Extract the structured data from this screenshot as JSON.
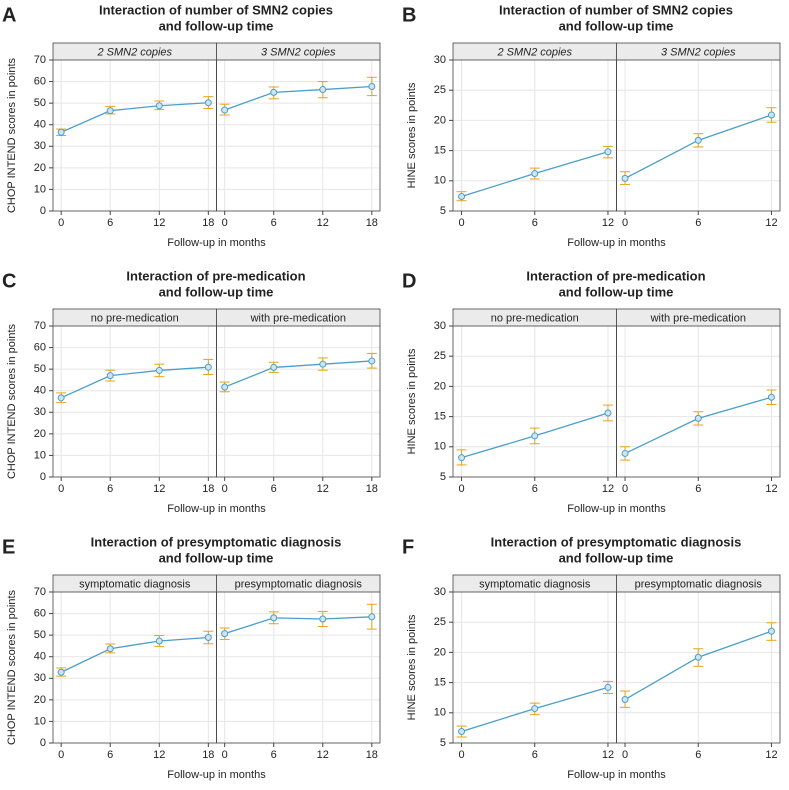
{
  "chart_data": [
    {
      "type": "line",
      "label": "A",
      "title": [
        "Interaction of number of SMN2 copies",
        "and follow-up time"
      ],
      "xlabel": "Follow-up in months",
      "ylabel": "CHOP INTEND scores in points",
      "ylim": [
        0,
        70
      ],
      "yticks": [
        0,
        10,
        20,
        30,
        40,
        50,
        60,
        70
      ],
      "xlim": [
        -1,
        19
      ],
      "xticks": [
        0,
        6,
        12,
        18
      ],
      "facet_italic": true,
      "color": "#4a9fc8",
      "error_color": "#e8a317",
      "grid": true,
      "facets": [
        {
          "name": "2 SMN2 copies",
          "x": [
            0,
            6,
            12,
            18
          ],
          "values": [
            36.5,
            46.5,
            48.8,
            50.2
          ],
          "lower": [
            35,
            45,
            47,
            47.5
          ],
          "upper": [
            38,
            48.5,
            51,
            53
          ]
        },
        {
          "name": "3 SMN2 copies",
          "x": [
            0,
            6,
            12,
            18
          ],
          "values": [
            46.8,
            55,
            56.3,
            57.7
          ],
          "lower": [
            44.5,
            52,
            52.5,
            53.5
          ],
          "upper": [
            49.5,
            57.5,
            60,
            62
          ]
        }
      ]
    },
    {
      "type": "line",
      "label": "B",
      "title": [
        "Interaction of number of SMN2 copies",
        "and follow-up time"
      ],
      "xlabel": "Follow-up in months",
      "ylabel": "HINE scores in points",
      "ylim": [
        5,
        30
      ],
      "yticks": [
        5,
        10,
        15,
        20,
        25,
        30
      ],
      "xlim": [
        -0.7,
        12.7
      ],
      "xticks": [
        0,
        6,
        12
      ],
      "facet_italic": true,
      "color": "#4a9fc8",
      "error_color": "#e8a317",
      "grid": true,
      "facets": [
        {
          "name": "2 SMN2 copies",
          "x": [
            0,
            6,
            12
          ],
          "values": [
            7.4,
            11.2,
            14.8
          ],
          "lower": [
            6.7,
            10.3,
            13.8
          ],
          "upper": [
            8.2,
            12.1,
            15.7
          ]
        },
        {
          "name": "3 SMN2 copies",
          "x": [
            0,
            6,
            12
          ],
          "values": [
            10.4,
            16.7,
            20.9
          ],
          "lower": [
            9.4,
            15.6,
            19.7
          ],
          "upper": [
            11.5,
            17.8,
            22.1
          ]
        }
      ]
    },
    {
      "type": "line",
      "label": "C",
      "title": [
        "Interaction of pre-medication",
        "and follow-up time"
      ],
      "xlabel": "Follow-up in months",
      "ylabel": "CHOP INTEND scores in points",
      "ylim": [
        0,
        70
      ],
      "yticks": [
        0,
        10,
        20,
        30,
        40,
        50,
        60,
        70
      ],
      "xlim": [
        -1,
        19
      ],
      "xticks": [
        0,
        6,
        12,
        18
      ],
      "facet_italic": false,
      "color": "#4a9fc8",
      "error_color": "#e8a317",
      "grid": true,
      "facets": [
        {
          "name": "no pre-medication",
          "x": [
            0,
            6,
            12,
            18
          ],
          "values": [
            36.7,
            47,
            49.4,
            50.9
          ],
          "lower": [
            34.5,
            44.5,
            46.5,
            47.5
          ],
          "upper": [
            39,
            49.5,
            52.3,
            54.5
          ]
        },
        {
          "name": "with pre-medication",
          "x": [
            0,
            6,
            12,
            18
          ],
          "values": [
            41.7,
            50.8,
            52.3,
            53.8
          ],
          "lower": [
            39.5,
            48.5,
            49.5,
            50.5
          ],
          "upper": [
            44,
            53.2,
            55.2,
            57.3
          ]
        }
      ]
    },
    {
      "type": "line",
      "label": "D",
      "title": [
        "Interaction of pre-medication",
        "and follow-up time"
      ],
      "xlabel": "Follow-up in months",
      "ylabel": "HINE scores in points",
      "ylim": [
        5,
        30
      ],
      "yticks": [
        5,
        10,
        15,
        20,
        25,
        30
      ],
      "xlim": [
        -0.7,
        12.7
      ],
      "xticks": [
        0,
        6,
        12
      ],
      "facet_italic": false,
      "color": "#4a9fc8",
      "error_color": "#e8a317",
      "grid": true,
      "facets": [
        {
          "name": "no pre-medication",
          "x": [
            0,
            6,
            12
          ],
          "values": [
            8.2,
            11.8,
            15.6
          ],
          "lower": [
            7,
            10.5,
            14.3
          ],
          "upper": [
            9.5,
            13.1,
            16.9
          ]
        },
        {
          "name": "with pre-medication",
          "x": [
            0,
            6,
            12
          ],
          "values": [
            8.9,
            14.7,
            18.2
          ],
          "lower": [
            7.8,
            13.6,
            17
          ],
          "upper": [
            10,
            15.8,
            19.4
          ]
        }
      ]
    },
    {
      "type": "line",
      "label": "E",
      "title": [
        "Interaction of presymptomatic diagnosis",
        "and follow-up time"
      ],
      "xlabel": "Follow-up in months",
      "ylabel": "CHOP INTEND scores in points",
      "ylim": [
        0,
        70
      ],
      "yticks": [
        0,
        10,
        20,
        30,
        40,
        50,
        60,
        70
      ],
      "xlim": [
        -1,
        19
      ],
      "xticks": [
        0,
        6,
        12,
        18
      ],
      "facet_italic": false,
      "color": "#4a9fc8",
      "error_color": "#e8a317",
      "grid": true,
      "facets": [
        {
          "name": "symptomatic diagnosis",
          "x": [
            0,
            6,
            12,
            18
          ],
          "values": [
            32.8,
            43.7,
            47.3,
            48.9
          ],
          "lower": [
            31,
            41.8,
            44.8,
            46
          ],
          "upper": [
            34.8,
            45.9,
            49.8,
            51.8
          ]
        },
        {
          "name": "presymptomatic diagnosis",
          "x": [
            0,
            6,
            12,
            18
          ],
          "values": [
            50.7,
            58,
            57.5,
            58.5
          ],
          "lower": [
            48,
            55.3,
            54,
            52.8
          ],
          "upper": [
            53.3,
            60.8,
            61,
            64.3
          ]
        }
      ]
    },
    {
      "type": "line",
      "label": "F",
      "title": [
        "Interaction of presymptomatic diagnosis",
        "and follow-up time"
      ],
      "xlabel": "Follow-up in months",
      "ylabel": "HINE scores in points",
      "ylim": [
        5,
        30
      ],
      "yticks": [
        5,
        10,
        15,
        20,
        25,
        30
      ],
      "xlim": [
        -0.7,
        12.7
      ],
      "xticks": [
        0,
        6,
        12
      ],
      "facet_italic": false,
      "color": "#4a9fc8",
      "error_color": "#e8a317",
      "grid": true,
      "facets": [
        {
          "name": "symptomatic diagnosis",
          "x": [
            0,
            6,
            12
          ],
          "values": [
            6.9,
            10.7,
            14.2
          ],
          "lower": [
            6,
            9.7,
            13.2
          ],
          "upper": [
            7.8,
            11.6,
            15.2
          ]
        },
        {
          "name": "presymptomatic diagnosis",
          "x": [
            0,
            6,
            12
          ],
          "values": [
            12.2,
            19.2,
            23.5
          ],
          "lower": [
            10.9,
            17.7,
            22
          ],
          "upper": [
            13.6,
            20.6,
            24.9
          ]
        }
      ]
    }
  ]
}
